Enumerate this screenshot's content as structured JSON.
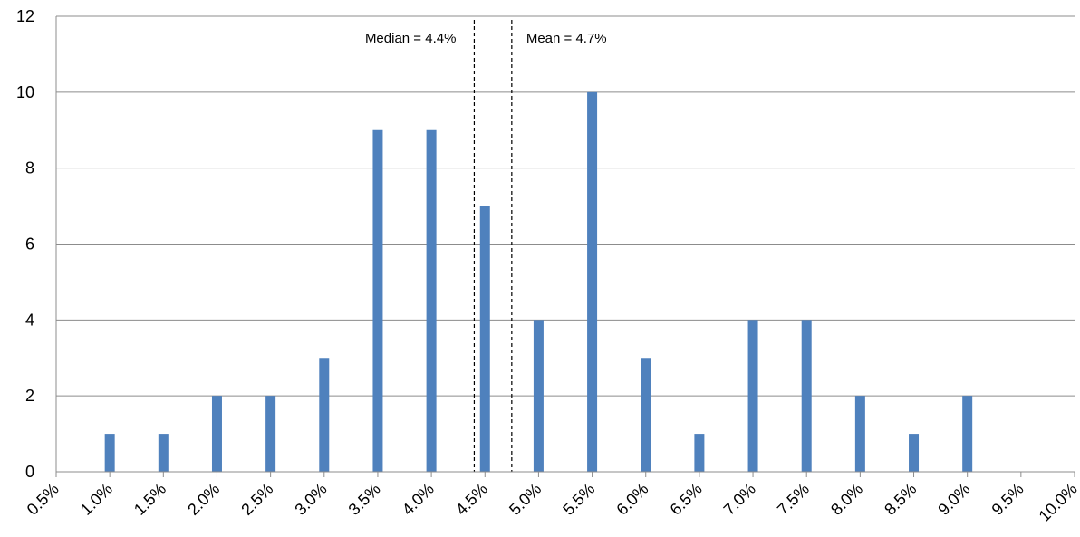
{
  "chart_data": {
    "type": "bar",
    "title": "",
    "xlabel": "",
    "ylabel": "",
    "categories": [
      "0.5%",
      "1.0%",
      "1.5%",
      "2.0%",
      "2.5%",
      "3.0%",
      "3.5%",
      "4.0%",
      "4.5%",
      "5.0%",
      "5.5%",
      "6.0%",
      "6.5%",
      "7.0%",
      "7.5%",
      "8.0%",
      "8.5%",
      "9.0%",
      "9.5%",
      "10.0%"
    ],
    "x_values": [
      0.5,
      1.0,
      1.5,
      2.0,
      2.5,
      3.0,
      3.5,
      4.0,
      4.5,
      5.0,
      5.5,
      6.0,
      6.5,
      7.0,
      7.5,
      8.0,
      8.5,
      9.0,
      9.5,
      10.0
    ],
    "values": [
      0,
      1,
      1,
      2,
      2,
      3,
      9,
      9,
      7,
      4,
      10,
      3,
      1,
      4,
      4,
      2,
      1,
      2,
      0,
      0
    ],
    "xlim": [
      0.5,
      10.0
    ],
    "ylim": [
      0,
      12
    ],
    "y_ticks": [
      0,
      2,
      4,
      6,
      8,
      10,
      12
    ],
    "grid": true,
    "legend": "none",
    "bar_color": "#4F81BD",
    "reference_lines": [
      {
        "label": "Median = 4.4%",
        "x": 4.4,
        "label_side": "left"
      },
      {
        "label": "Mean = 4.7%",
        "x": 4.75,
        "label_side": "right"
      }
    ]
  }
}
